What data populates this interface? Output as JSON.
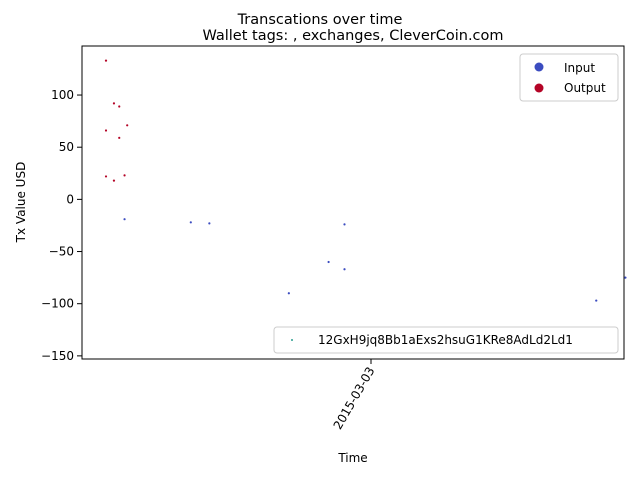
{
  "chart_data": {
    "type": "scatter",
    "title": "Transcations over time",
    "subtitle": "Wallet tags: , exchanges, CleverCoin.com",
    "xlabel": "Time",
    "ylabel": "Tx Value USD",
    "x_tick_labels": [
      "2015-03-03"
    ],
    "y_ticks": [
      100,
      50,
      0,
      -50,
      -100,
      -150
    ],
    "ylim": [
      -153,
      147
    ],
    "grid": false,
    "legend_class": {
      "placement": "top-right",
      "entries": [
        {
          "label": "Input",
          "color": "#3b4cc0"
        },
        {
          "label": "Output",
          "color": "#b40426"
        }
      ]
    },
    "legend_wallet": {
      "placement": "bottom-right",
      "label": "12GxH9jq8Bb1aExs2hsuG1KRe8AdLd2Ld1",
      "color": "#2a9d8f"
    },
    "series": [
      {
        "name": "Output",
        "color": "#b40426",
        "points": [
          {
            "t": 0.0,
            "y": 133
          },
          {
            "t": 0.0,
            "y": 66
          },
          {
            "t": 0.0,
            "y": 22
          },
          {
            "t": 0.03,
            "y": 92
          },
          {
            "t": 0.03,
            "y": 18
          },
          {
            "t": 0.05,
            "y": 89
          },
          {
            "t": 0.05,
            "y": 59
          },
          {
            "t": 0.07,
            "y": 23
          },
          {
            "t": 0.08,
            "y": 71
          }
        ]
      },
      {
        "name": "Input",
        "color": "#3b4cc0",
        "points": [
          {
            "t": 0.07,
            "y": -19
          },
          {
            "t": 0.32,
            "y": -22
          },
          {
            "t": 0.39,
            "y": -23
          },
          {
            "t": 0.69,
            "y": -90
          },
          {
            "t": 0.84,
            "y": -60
          },
          {
            "t": 0.9,
            "y": -24
          },
          {
            "t": 0.9,
            "y": -67
          },
          {
            "t": 1.85,
            "y": -97
          },
          {
            "t": 1.96,
            "y": -75
          }
        ]
      }
    ]
  }
}
